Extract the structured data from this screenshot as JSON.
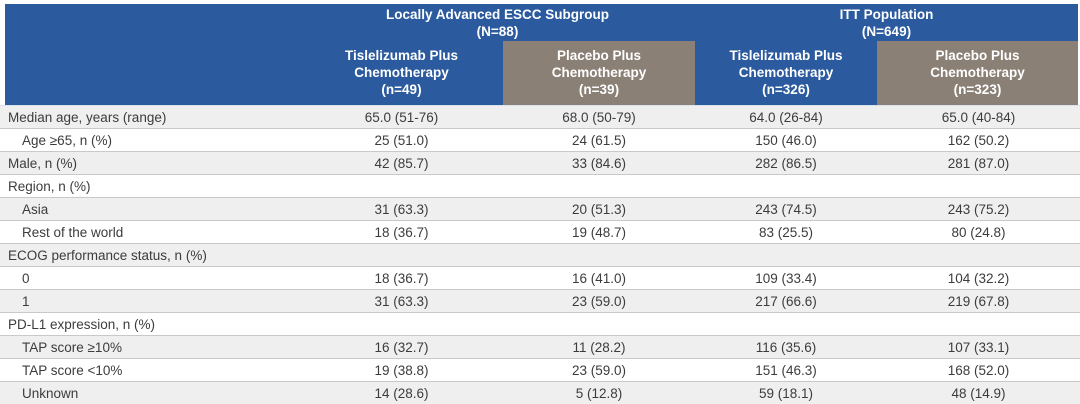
{
  "colors": {
    "header_blue": "#2b5a9e",
    "header_gray": "#8a8076",
    "row_shaded": "#efefef",
    "row_border": "#c9c9c9",
    "text": "#3c3c3c",
    "header_text": "#ffffff"
  },
  "header": {
    "groups": [
      {
        "title": "Locally Advanced ESCC Subgroup",
        "n": "(N=88)"
      },
      {
        "title": "ITT Population",
        "n": "(N=649)"
      }
    ],
    "columns": [
      {
        "line1": "Tislelizumab Plus",
        "line2": "Chemotherapy",
        "n": "(n=49)"
      },
      {
        "line1": "Placebo Plus",
        "line2": "Chemotherapy",
        "n": "(n=39)"
      },
      {
        "line1": "Tislelizumab Plus",
        "line2": "Chemotherapy",
        "n": "(n=326)"
      },
      {
        "line1": "Placebo Plus",
        "line2": "Chemotherapy",
        "n": "(n=323)"
      }
    ]
  },
  "rows": [
    {
      "label": "Median age, years (range)",
      "values": [
        "65.0 (51-76)",
        "68.0 (50-79)",
        "64.0 (26-84)",
        "65.0 (40-84)"
      ]
    },
    {
      "label": "Age ≥65, n (%)",
      "values": [
        "25 (51.0)",
        "24 (61.5)",
        "150 (46.0)",
        "162 (50.2)"
      ]
    },
    {
      "label": "Male, n (%)",
      "values": [
        "42 (85.7)",
        "33 (84.6)",
        "282 (86.5)",
        "281 (87.0)"
      ]
    },
    {
      "label": "Region, n (%)",
      "values": [
        "",
        "",
        "",
        ""
      ]
    },
    {
      "label": "Asia",
      "values": [
        "31 (63.3)",
        "20 (51.3)",
        "243 (74.5)",
        "243 (75.2)"
      ]
    },
    {
      "label": "Rest of the world",
      "values": [
        "18 (36.7)",
        "19 (48.7)",
        "83 (25.5)",
        "80 (24.8)"
      ]
    },
    {
      "label": "ECOG performance status, n (%)",
      "values": [
        "",
        "",
        "",
        ""
      ]
    },
    {
      "label": "0",
      "values": [
        "18 (36.7)",
        "16 (41.0)",
        "109 (33.4)",
        "104 (32.2)"
      ]
    },
    {
      "label": "1",
      "values": [
        "31 (63.3)",
        "23 (59.0)",
        "217 (66.6)",
        "219 (67.8)"
      ]
    },
    {
      "label": "PD-L1 expression, n (%)",
      "values": [
        "",
        "",
        "",
        ""
      ]
    },
    {
      "label": "TAP score ≥10%",
      "values": [
        "16 (32.7)",
        "11 (28.2)",
        "116 (35.6)",
        "107 (33.1)"
      ]
    },
    {
      "label": "TAP score <10%",
      "values": [
        "19 (38.8)",
        "23 (59.0)",
        "151 (46.3)",
        "168 (52.0)"
      ]
    },
    {
      "label": "Unknown",
      "values": [
        "14 (28.6)",
        "5 (12.8)",
        "59 (18.1)",
        "48 (14.9)"
      ]
    }
  ]
}
